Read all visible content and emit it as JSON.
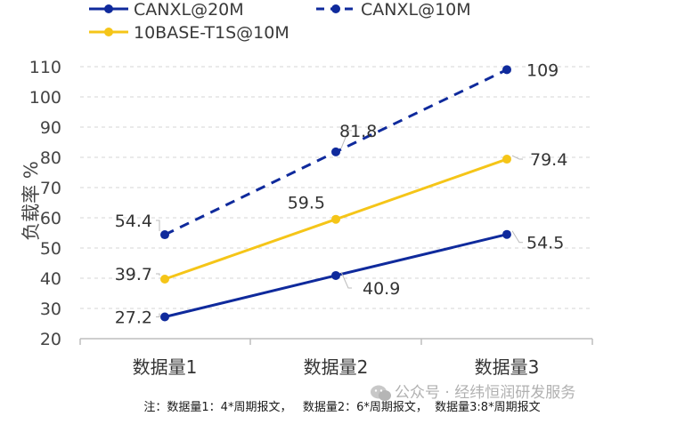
{
  "chart_data": {
    "type": "line",
    "ylabel": "负载率 %",
    "categories": [
      "数据量1",
      "数据量2",
      "数据量3"
    ],
    "yticks": [
      20,
      30,
      40,
      50,
      60,
      70,
      80,
      90,
      100,
      110
    ],
    "ylim": [
      20,
      110
    ],
    "grid": "horizontal dashed",
    "legend_position": "top",
    "series": [
      {
        "name": "CANXL@20M",
        "values": [
          27.2,
          40.9,
          54.5
        ],
        "labels": [
          "27.2",
          "40.9",
          "54.5"
        ],
        "color": "#0f2a9c",
        "style": "solid"
      },
      {
        "name": "CANXL@10M",
        "values": [
          54.4,
          81.8,
          109
        ],
        "labels": [
          "54.4",
          "81.8",
          "109"
        ],
        "color": "#0f2a9c",
        "style": "dashed"
      },
      {
        "name": "10BASE-T1S@10M",
        "values": [
          39.7,
          59.5,
          79.4
        ],
        "labels": [
          "39.7",
          "59.5",
          "79.4"
        ],
        "color": "#f5c518",
        "style": "solid"
      }
    ]
  },
  "note": "注：数据量1：4*周期报文，   数据量2：6*周期报文，  数据量3:8*周期报文",
  "watermark": "公众号 · 经纬恒润研发服务"
}
